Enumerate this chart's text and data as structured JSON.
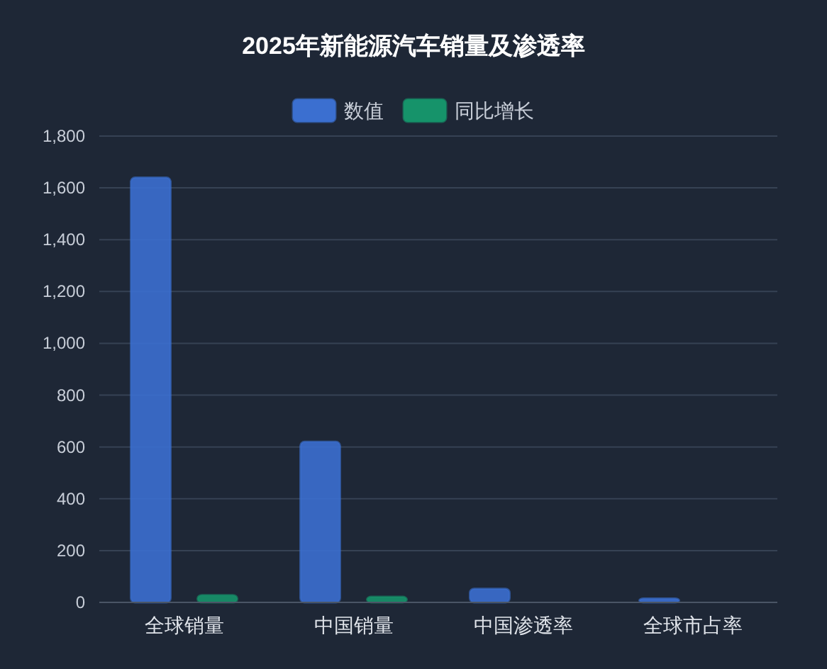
{
  "chart_data": {
    "type": "bar",
    "title": "2025年新能源汽车销量及渗透率",
    "categories": [
      "全球销量",
      "中国销量",
      "中国渗透率",
      "全球市占率"
    ],
    "series": [
      {
        "name": "数值",
        "color": "#3b6fd0",
        "values": [
          1640,
          620,
          53,
          15
        ]
      },
      {
        "name": "同比增长",
        "color": "#16936a",
        "values": [
          28,
          22,
          null,
          null
        ]
      }
    ],
    "ylim": [
      0,
      1800
    ],
    "yticks": [
      {
        "value": 0,
        "label": "0"
      },
      {
        "value": 200,
        "label": "200"
      },
      {
        "value": 400,
        "label": "400"
      },
      {
        "value": 600,
        "label": "600"
      },
      {
        "value": 800,
        "label": "800"
      },
      {
        "value": 1000,
        "label": "1,000"
      },
      {
        "value": 1200,
        "label": "1,200"
      },
      {
        "value": 1400,
        "label": "1,400"
      },
      {
        "value": 1600,
        "label": "1,600"
      },
      {
        "value": 1800,
        "label": "1,800"
      }
    ],
    "grid": "y",
    "legend": "top"
  }
}
